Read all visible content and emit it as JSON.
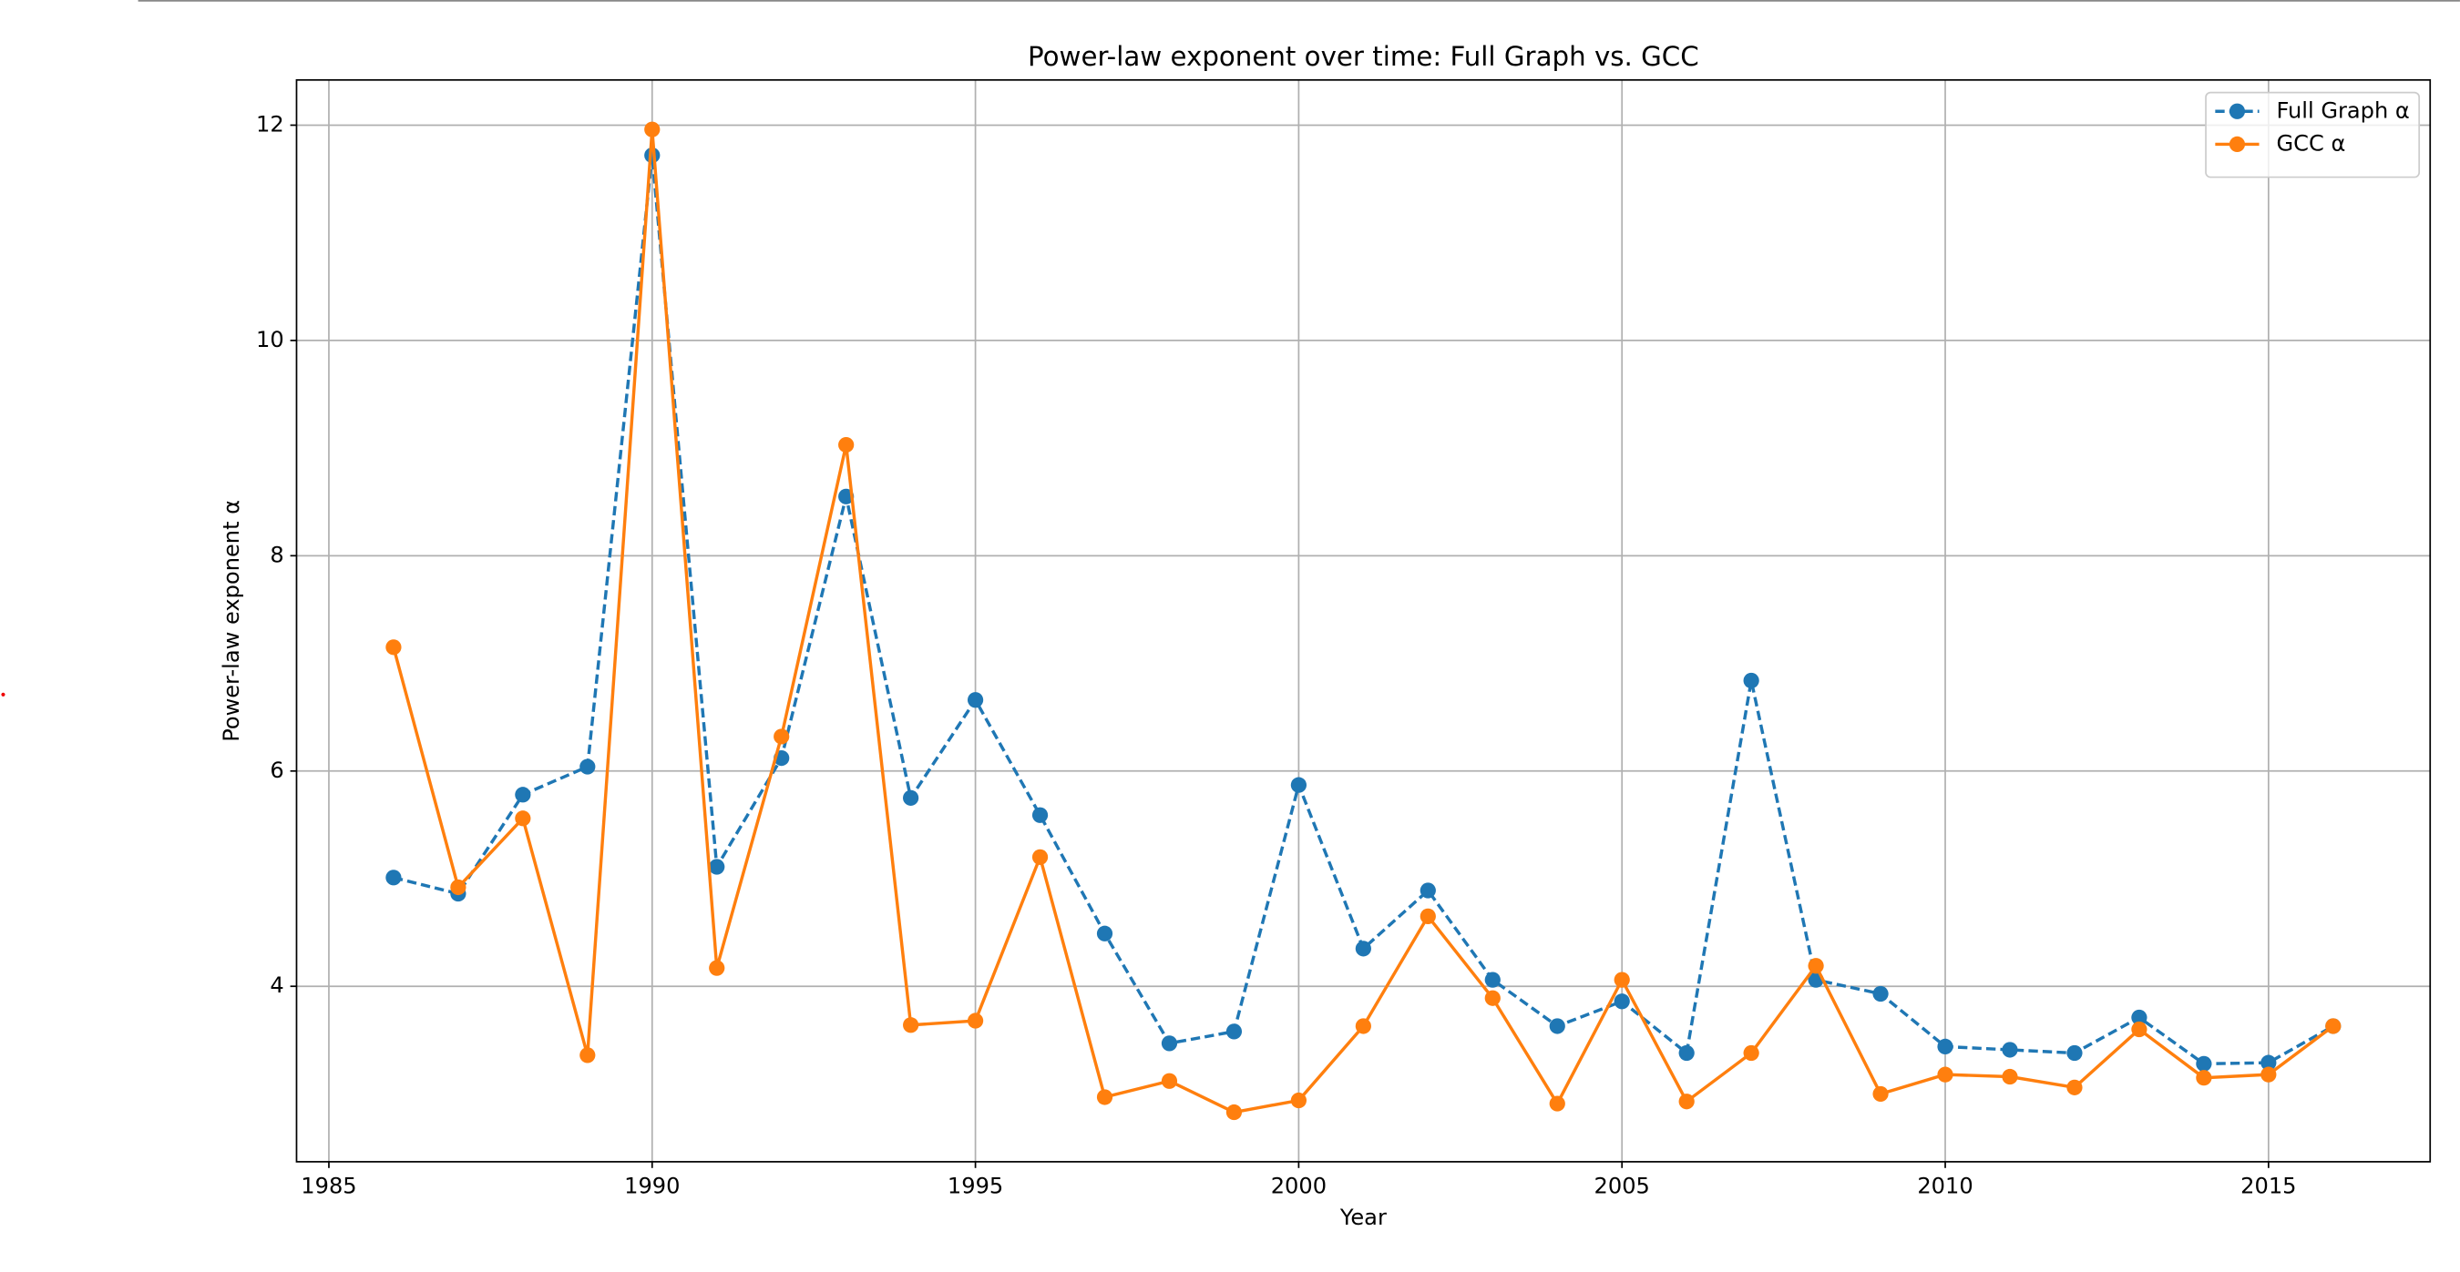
{
  "chart_data": {
    "type": "line",
    "title": "Power-law exponent over time: Full Graph vs. GCC",
    "x_label": "Year",
    "y_label": "Power-law exponent α",
    "x": [
      1986,
      1987,
      1988,
      1989,
      1990,
      1991,
      1992,
      1993,
      1994,
      1995,
      1996,
      1997,
      1998,
      1999,
      2000,
      2001,
      2002,
      2003,
      2004,
      2005,
      2006,
      2007,
      2008,
      2009,
      2010,
      2011,
      2012,
      2013,
      2014,
      2015,
      2016
    ],
    "series": [
      {
        "name": "Full Graph α",
        "color": "#1f77b4",
        "linestyle": "dashed",
        "values": [
          5.01,
          4.86,
          5.78,
          6.04,
          11.72,
          5.11,
          6.12,
          8.55,
          5.75,
          6.66,
          5.59,
          4.49,
          3.47,
          3.58,
          5.87,
          4.35,
          4.89,
          4.06,
          3.63,
          3.86,
          3.38,
          6.84,
          4.06,
          3.93,
          3.44,
          3.41,
          3.38,
          3.71,
          3.28,
          3.29,
          3.63
        ]
      },
      {
        "name": "GCC α",
        "color": "#ff7f0e",
        "linestyle": "solid",
        "values": [
          7.15,
          4.92,
          5.56,
          3.36,
          11.96,
          4.17,
          6.32,
          9.03,
          3.64,
          3.68,
          5.2,
          2.97,
          3.12,
          2.83,
          2.94,
          3.63,
          4.65,
          3.89,
          2.91,
          4.06,
          2.93,
          3.38,
          4.19,
          3.0,
          3.18,
          3.16,
          3.06,
          3.6,
          3.15,
          3.18,
          3.63
        ]
      }
    ],
    "xlim": [
      1984.5,
      2017.5
    ],
    "xticks": [
      1985,
      1990,
      1995,
      2000,
      2005,
      2010,
      2015
    ],
    "ylim": [
      2.37,
      12.42
    ],
    "yticks": [
      4,
      6,
      8,
      10,
      12
    ],
    "grid": true,
    "legend": "upper right"
  }
}
